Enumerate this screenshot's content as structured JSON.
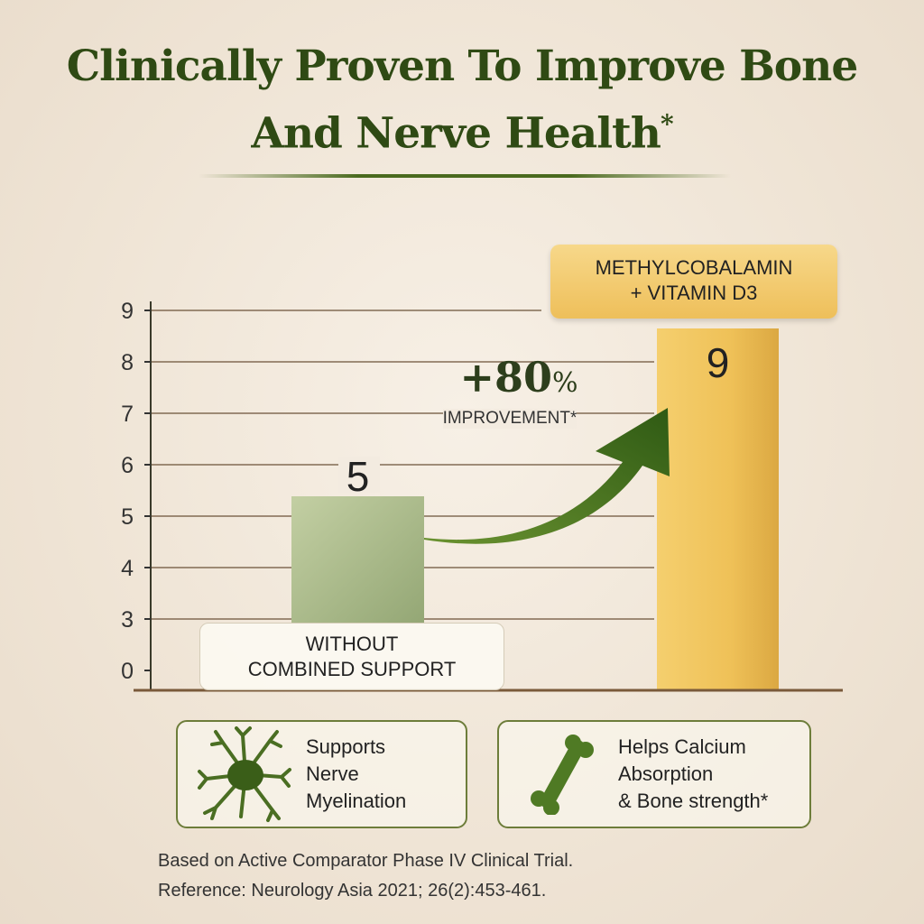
{
  "title": {
    "line1": "Clinically Proven To Improve Bone",
    "line2": "And Nerve Health",
    "mark": "*"
  },
  "chart_data": {
    "type": "bar",
    "categories": [
      "WITHOUT COMBINED SUPPORT",
      "METHYLCOBALAMIN + VITAMIN D3"
    ],
    "category_lines": [
      [
        "WITHOUT",
        "COMBINED SUPPORT"
      ],
      [
        "METHYLCOBALAMIN",
        "+ VITAMIN D3"
      ]
    ],
    "values": [
      5,
      9
    ],
    "value_labels": [
      "5",
      "9"
    ],
    "yticks": [
      "0",
      "3",
      "4",
      "5",
      "6",
      "7",
      "8",
      "9"
    ],
    "ylim": [
      0,
      9
    ],
    "axis_break": "between 0 and 3",
    "grid": true,
    "colors": {
      "bar1": "#a9b98a",
      "bar2": "#f0c25a",
      "arrow": "#3f6a1c"
    },
    "annotation": {
      "value": "+80",
      "unit": "%",
      "label": "IMPROVEMENT*"
    }
  },
  "features": [
    {
      "icon": "neuron-icon",
      "lines": [
        "Supports",
        "Nerve",
        "Myelination"
      ]
    },
    {
      "icon": "bone-icon",
      "lines": [
        "Helps Calcium",
        "Absorption",
        "& Bone strength*"
      ]
    }
  ],
  "footnote": {
    "line1": "Based on Active Comparator Phase IV Clinical Trial.",
    "line2": "Reference: Neurology Asia 2021; 26(2):453-461."
  }
}
